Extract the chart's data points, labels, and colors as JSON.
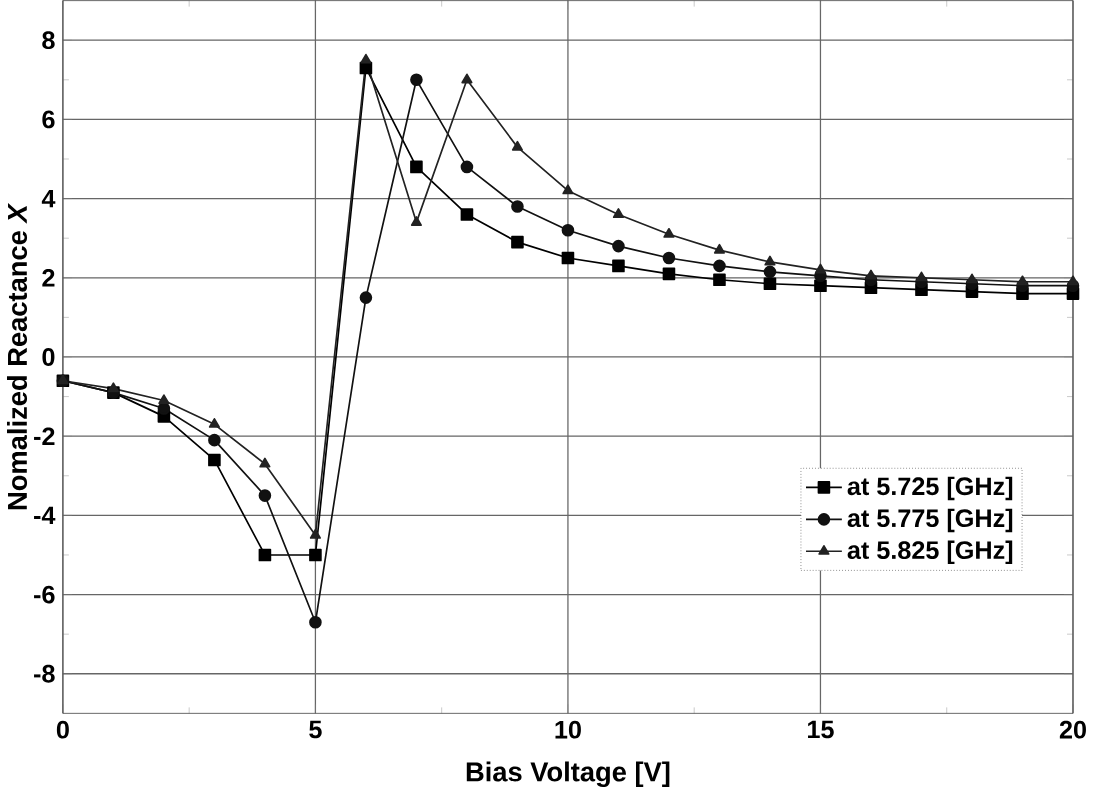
{
  "chart_data": {
    "type": "line",
    "xlabel": "Bias Voltage [V]",
    "ylabel": "Nomalized Reactance *X*",
    "x": [
      0,
      1,
      2,
      3,
      4,
      5,
      6,
      7,
      8,
      9,
      10,
      11,
      12,
      13,
      14,
      15,
      16,
      17,
      18,
      19,
      20
    ],
    "series": [
      {
        "name": "at 5.725 [GHz]",
        "color": "#000000",
        "marker": "square",
        "values": [
          -0.6,
          -0.9,
          -1.5,
          -2.6,
          -5.0,
          -5.0,
          7.3,
          4.8,
          3.6,
          2.9,
          2.5,
          2.3,
          2.1,
          1.95,
          1.85,
          1.8,
          1.75,
          1.7,
          1.65,
          1.6,
          1.6
        ]
      },
      {
        "name": "at 5.775 [GHz]",
        "color": "#111111",
        "marker": "circle",
        "values": [
          -0.6,
          -0.9,
          -1.3,
          -2.1,
          -3.5,
          -6.7,
          1.5,
          7.0,
          4.8,
          3.8,
          3.2,
          2.8,
          2.5,
          2.3,
          2.15,
          2.05,
          1.95,
          1.9,
          1.85,
          1.8,
          1.8
        ]
      },
      {
        "name": "at 5.825 [GHz]",
        "color": "#222222",
        "marker": "triangle",
        "values": [
          -0.6,
          -0.8,
          -1.1,
          -1.7,
          -2.7,
          -4.5,
          7.5,
          3.4,
          7.0,
          5.3,
          4.2,
          3.6,
          3.1,
          2.7,
          2.4,
          2.2,
          2.05,
          2.0,
          1.95,
          1.9,
          1.9
        ]
      }
    ],
    "xlim": [
      0,
      20
    ],
    "xticks": [
      0,
      5,
      10,
      15,
      20
    ],
    "ylim": [
      -9,
      9
    ],
    "yticks": [
      -8,
      -6,
      -4,
      -2,
      0,
      2,
      4,
      6,
      8
    ],
    "grid": true,
    "legend": "right",
    "line_style": "solid"
  }
}
